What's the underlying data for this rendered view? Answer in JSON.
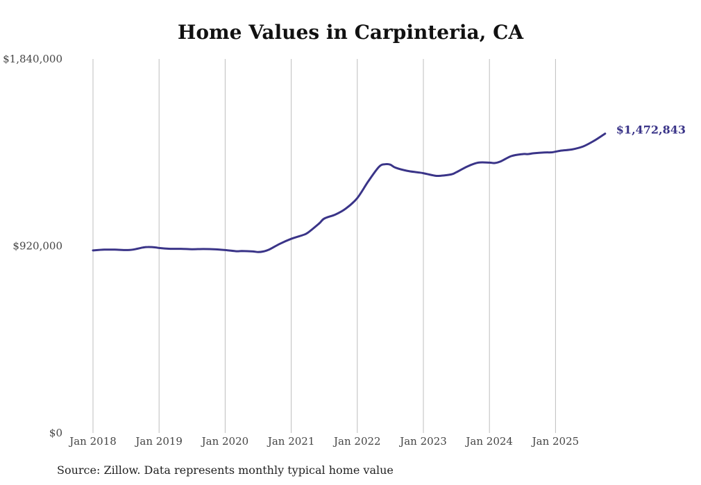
{
  "colors": {
    "line": "#3a3488",
    "grid": "#bdbdbd",
    "text": "#444444"
  },
  "chart_data": {
    "type": "line",
    "title": "Home Values in Carpinteria, CA",
    "xlabel": "",
    "ylabel": "",
    "ylim": [
      0,
      1840000
    ],
    "y_ticks": [
      {
        "value": 0,
        "label": "$0"
      },
      {
        "value": 920000,
        "label": "$920,000"
      },
      {
        "value": 1840000,
        "label": "$1,840,000"
      }
    ],
    "x_ticks": [
      {
        "value": 2018,
        "label": "Jan 2018"
      },
      {
        "value": 2019,
        "label": "Jan 2019"
      },
      {
        "value": 2020,
        "label": "Jan 2020"
      },
      {
        "value": 2021,
        "label": "Jan 2021"
      },
      {
        "value": 2022,
        "label": "Jan 2022"
      },
      {
        "value": 2023,
        "label": "Jan 2023"
      },
      {
        "value": 2024,
        "label": "Jan 2024"
      },
      {
        "value": 2025,
        "label": "Jan 2025"
      }
    ],
    "xlim": [
      2018,
      2025.75
    ],
    "grid": "vertical",
    "end_label": "$1,472,843",
    "series": [
      {
        "name": "Typical home value",
        "x": [
          2018.0,
          2018.17,
          2018.33,
          2018.5,
          2018.6,
          2018.75,
          2018.83,
          2018.95,
          2019.0,
          2019.17,
          2019.33,
          2019.5,
          2019.67,
          2019.83,
          2020.0,
          2020.17,
          2020.25,
          2020.42,
          2020.5,
          2020.58,
          2020.67,
          2020.83,
          2021.0,
          2021.17,
          2021.25,
          2021.42,
          2021.5,
          2021.67,
          2021.83,
          2022.0,
          2022.17,
          2022.33,
          2022.42,
          2022.5,
          2022.58,
          2022.75,
          2022.92,
          2023.0,
          2023.17,
          2023.25,
          2023.42,
          2023.5,
          2023.67,
          2023.83,
          2024.0,
          2024.08,
          2024.17,
          2024.33,
          2024.5,
          2024.58,
          2024.67,
          2024.83,
          2024.95,
          2025.08,
          2025.25,
          2025.42,
          2025.58,
          2025.75
        ],
        "values": [
          898000,
          902000,
          902000,
          900000,
          902000,
          912000,
          915000,
          913000,
          910000,
          906000,
          906000,
          904000,
          905000,
          904000,
          900000,
          894000,
          895000,
          893000,
          890000,
          893000,
          903000,
          931000,
          955000,
          973000,
          985000,
          1030000,
          1055000,
          1075000,
          1105000,
          1156000,
          1240000,
          1310000,
          1322000,
          1320000,
          1305000,
          1290000,
          1282000,
          1278000,
          1266000,
          1265000,
          1272000,
          1283000,
          1312000,
          1330000,
          1330000,
          1328000,
          1336000,
          1362000,
          1372000,
          1372000,
          1376000,
          1380000,
          1381000,
          1389000,
          1395000,
          1410000,
          1437000,
          1472843
        ]
      }
    ]
  },
  "source": "Source: Zillow. Data represents monthly typical home value"
}
